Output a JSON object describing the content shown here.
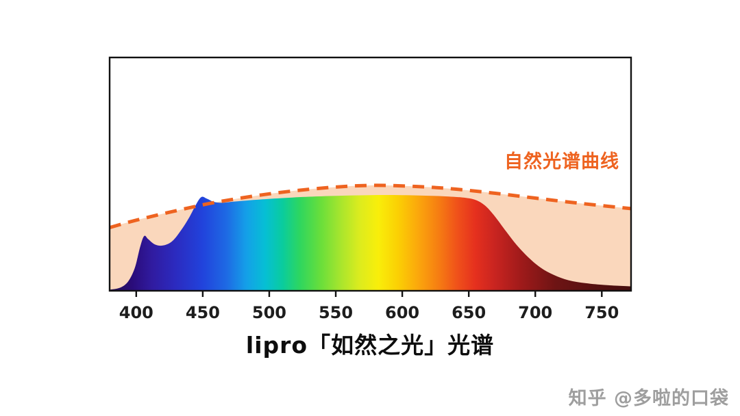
{
  "page": {
    "background": "#ffffff"
  },
  "watermark": {
    "text": "知乎 @多啦的口袋"
  },
  "chart_data": {
    "type": "area",
    "title": "lipro「如然之光」光谱",
    "annotation": "自然光谱曲线",
    "xlabel": "",
    "ylabel": "",
    "x_unit": "nm",
    "x_range": [
      380,
      772
    ],
    "x_ticks": [
      400,
      450,
      500,
      550,
      600,
      650,
      700,
      750
    ],
    "ylim": [
      0,
      1.05
    ],
    "grid": false,
    "legend": "none",
    "colors": {
      "natural_fill": "#FAD7BC",
      "natural_line": "#EE6320",
      "axis": "#111111",
      "tick_label": "#1d1d1d",
      "title": "#0d0d0d",
      "annotation": "#EE6320",
      "watermark": "#9e9e9e"
    },
    "series": [
      {
        "name": "自然光谱曲线",
        "style": "dashed-line-with-fill",
        "points": [
          [
            380,
            0.6
          ],
          [
            400,
            0.67
          ],
          [
            430,
            0.76
          ],
          [
            460,
            0.84
          ],
          [
            500,
            0.92
          ],
          [
            540,
            0.975
          ],
          [
            575,
            1.0
          ],
          [
            610,
            0.99
          ],
          [
            640,
            0.965
          ],
          [
            670,
            0.925
          ],
          [
            700,
            0.88
          ],
          [
            730,
            0.835
          ],
          [
            772,
            0.78
          ]
        ]
      },
      {
        "name": "lipro 如然之光 光谱",
        "style": "spectrum-area",
        "points": [
          [
            380,
            0.01
          ],
          [
            388,
            0.03
          ],
          [
            394,
            0.09
          ],
          [
            399,
            0.22
          ],
          [
            403,
            0.42
          ],
          [
            406,
            0.52
          ],
          [
            409,
            0.49
          ],
          [
            414,
            0.44
          ],
          [
            420,
            0.43
          ],
          [
            427,
            0.47
          ],
          [
            434,
            0.58
          ],
          [
            440,
            0.7
          ],
          [
            445,
            0.82
          ],
          [
            449,
            0.89
          ],
          [
            453,
            0.875
          ],
          [
            458,
            0.845
          ],
          [
            464,
            0.835
          ],
          [
            472,
            0.845
          ],
          [
            482,
            0.856
          ],
          [
            495,
            0.868
          ],
          [
            510,
            0.88
          ],
          [
            530,
            0.893
          ],
          [
            550,
            0.901
          ],
          [
            575,
            0.908
          ],
          [
            600,
            0.908
          ],
          [
            620,
            0.902
          ],
          [
            635,
            0.895
          ],
          [
            648,
            0.882
          ],
          [
            656,
            0.858
          ],
          [
            663,
            0.8
          ],
          [
            670,
            0.7
          ],
          [
            678,
            0.565
          ],
          [
            686,
            0.435
          ],
          [
            695,
            0.315
          ],
          [
            704,
            0.22
          ],
          [
            714,
            0.15
          ],
          [
            725,
            0.1
          ],
          [
            738,
            0.072
          ],
          [
            752,
            0.055
          ],
          [
            762,
            0.048
          ],
          [
            772,
            0.042
          ]
        ]
      }
    ],
    "spectrum_gradient": [
      [
        380,
        "#23104E"
      ],
      [
        397,
        "#2A0C7A"
      ],
      [
        412,
        "#301BA0"
      ],
      [
        430,
        "#2B2BC0"
      ],
      [
        450,
        "#2143DC"
      ],
      [
        468,
        "#1E6AE4"
      ],
      [
        483,
        "#14A0E8"
      ],
      [
        497,
        "#06BFD4"
      ],
      [
        510,
        "#0ACC9E"
      ],
      [
        523,
        "#2ED65F"
      ],
      [
        538,
        "#66DE3C"
      ],
      [
        553,
        "#A5E52E"
      ],
      [
        568,
        "#DCEC1E"
      ],
      [
        582,
        "#F9EE0A"
      ],
      [
        597,
        "#FBCF04"
      ],
      [
        612,
        "#FBA70C"
      ],
      [
        627,
        "#F67E12"
      ],
      [
        641,
        "#F0521A"
      ],
      [
        655,
        "#E5301E"
      ],
      [
        670,
        "#C82420"
      ],
      [
        690,
        "#9E1A1A"
      ],
      [
        715,
        "#6E1414"
      ],
      [
        745,
        "#551010"
      ],
      [
        772,
        "#440D0E"
      ]
    ]
  }
}
